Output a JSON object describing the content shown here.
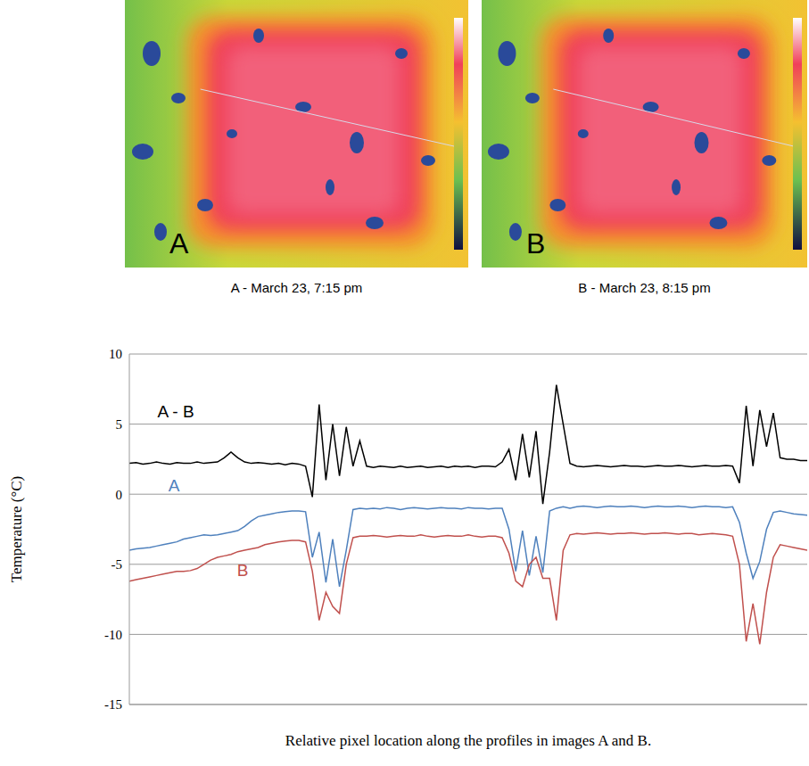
{
  "images": [
    {
      "letter": "A",
      "caption": "A - March 23, 7:15 pm"
    },
    {
      "letter": "B",
      "caption": "B - March 23, 8:15 pm"
    }
  ],
  "chart_data": {
    "type": "line",
    "y_label": "Temperature (°C)",
    "x_label": "Relative pixel location along the profiles in images A and B.",
    "x": [
      0,
      1,
      2,
      3,
      4,
      5,
      6,
      7,
      8,
      9,
      10,
      11,
      12,
      13,
      14,
      15,
      16,
      17,
      18,
      19,
      20,
      21,
      22,
      23,
      24,
      25,
      26,
      27,
      28,
      29,
      30,
      31,
      32,
      33,
      34,
      35,
      36,
      37,
      38,
      39,
      40,
      41,
      42,
      43,
      44,
      45,
      46,
      47,
      48,
      49,
      50,
      51,
      52,
      53,
      54,
      55,
      56,
      57,
      58,
      59,
      60,
      61,
      62,
      63,
      64,
      65,
      66,
      67,
      68,
      69,
      70,
      71,
      72,
      73,
      74,
      75,
      76,
      77,
      78,
      79,
      80,
      81,
      82,
      83,
      84,
      85,
      86,
      87,
      88,
      89,
      90,
      91,
      92,
      93,
      94,
      95,
      96,
      97,
      98,
      99,
      100
    ],
    "series": [
      {
        "name": "A - B",
        "color": "#000000",
        "values": [
          2.2,
          2.25,
          2.15,
          2.2,
          2.3,
          2.2,
          2.15,
          2.25,
          2.2,
          2.2,
          2.3,
          2.2,
          2.25,
          2.3,
          2.6,
          3.0,
          2.6,
          2.3,
          2.2,
          2.25,
          2.2,
          2.15,
          2.2,
          2.1,
          2.2,
          2.15,
          2.0,
          -0.2,
          6.4,
          1.0,
          5.0,
          1.3,
          4.8,
          2.0,
          3.8,
          2.0,
          1.9,
          2.0,
          1.95,
          1.9,
          2.0,
          1.9,
          1.95,
          2.0,
          1.9,
          1.95,
          2.0,
          1.9,
          2.0,
          1.95,
          2.0,
          1.9,
          2.0,
          2.0,
          1.95,
          2.3,
          3.2,
          1.0,
          4.3,
          1.2,
          4.5,
          -0.7,
          3.0,
          7.8,
          5.0,
          2.2,
          2.0,
          1.95,
          2.0,
          2.05,
          2.0,
          1.95,
          2.0,
          2.05,
          2.0,
          2.0,
          1.95,
          2.0,
          2.05,
          2.0,
          2.0,
          2.05,
          2.0,
          1.95,
          2.0,
          2.05,
          2.0,
          2.0,
          2.05,
          2.0,
          0.8,
          6.3,
          2.0,
          6.0,
          3.4,
          5.8,
          2.6,
          2.5,
          2.5,
          2.4,
          2.4
        ]
      },
      {
        "name": "A",
        "color": "#4f81bd",
        "values": [
          -4.0,
          -3.9,
          -3.85,
          -3.8,
          -3.7,
          -3.6,
          -3.5,
          -3.4,
          -3.2,
          -3.1,
          -3.0,
          -2.9,
          -2.95,
          -2.9,
          -2.8,
          -2.7,
          -2.6,
          -2.3,
          -1.9,
          -1.6,
          -1.5,
          -1.4,
          -1.3,
          -1.25,
          -1.2,
          -1.2,
          -1.25,
          -4.5,
          -2.7,
          -6.3,
          -3.2,
          -6.6,
          -4.0,
          -1.1,
          -1.0,
          -1.05,
          -1.0,
          -1.05,
          -0.95,
          -1.0,
          -1.1,
          -1.0,
          -0.95,
          -1.0,
          -1.05,
          -1.0,
          -0.95,
          -1.0,
          -1.0,
          -1.05,
          -0.95,
          -1.0,
          -1.0,
          -1.05,
          -1.0,
          -1.0,
          -2.5,
          -5.5,
          -2.6,
          -5.8,
          -3.0,
          -5.6,
          -1.2,
          -1.0,
          -0.9,
          -1.0,
          -0.9,
          -0.85,
          -0.9,
          -0.95,
          -0.9,
          -0.85,
          -0.9,
          -0.9,
          -0.85,
          -0.9,
          -0.95,
          -0.9,
          -0.85,
          -0.9,
          -0.9,
          -0.85,
          -0.9,
          -0.95,
          -0.9,
          -0.85,
          -0.9,
          -0.9,
          -0.95,
          -0.9,
          -2.0,
          -4.2,
          -6.0,
          -4.8,
          -2.5,
          -1.3,
          -1.2,
          -1.3,
          -1.4,
          -1.45,
          -1.5
        ]
      },
      {
        "name": "B",
        "color": "#c0504d",
        "values": [
          -6.2,
          -6.1,
          -6.0,
          -5.9,
          -5.8,
          -5.7,
          -5.6,
          -5.5,
          -5.5,
          -5.45,
          -5.3,
          -5.0,
          -4.7,
          -4.5,
          -4.4,
          -4.3,
          -4.1,
          -4.0,
          -3.9,
          -3.8,
          -3.6,
          -3.5,
          -3.4,
          -3.35,
          -3.3,
          -3.3,
          -3.4,
          -5.5,
          -9.0,
          -7.0,
          -8.0,
          -8.5,
          -5.0,
          -3.1,
          -3.0,
          -3.0,
          -2.95,
          -3.0,
          -3.05,
          -3.0,
          -2.95,
          -3.0,
          -3.0,
          -2.9,
          -3.0,
          -3.05,
          -3.0,
          -2.95,
          -3.0,
          -3.0,
          -2.9,
          -3.0,
          -3.05,
          -3.0,
          -3.0,
          -3.1,
          -4.2,
          -6.2,
          -6.6,
          -5.0,
          -4.5,
          -6.0,
          -6.0,
          -9.0,
          -4.0,
          -2.9,
          -2.8,
          -2.85,
          -2.8,
          -2.75,
          -2.8,
          -2.85,
          -2.8,
          -2.8,
          -2.75,
          -2.8,
          -2.85,
          -2.8,
          -2.8,
          -2.75,
          -2.8,
          -2.85,
          -2.8,
          -2.8,
          -2.9,
          -2.85,
          -2.8,
          -2.85,
          -2.9,
          -3.0,
          -5.0,
          -10.5,
          -7.8,
          -10.7,
          -7.0,
          -4.5,
          -3.6,
          -3.7,
          -3.8,
          -3.9,
          -4.0
        ]
      }
    ],
    "xlim": [
      0,
      100
    ],
    "ylim": [
      -15,
      10
    ],
    "yticks": [
      -15,
      -10,
      -5,
      0,
      5,
      10
    ],
    "grid": true,
    "tick_labels": "y"
  }
}
